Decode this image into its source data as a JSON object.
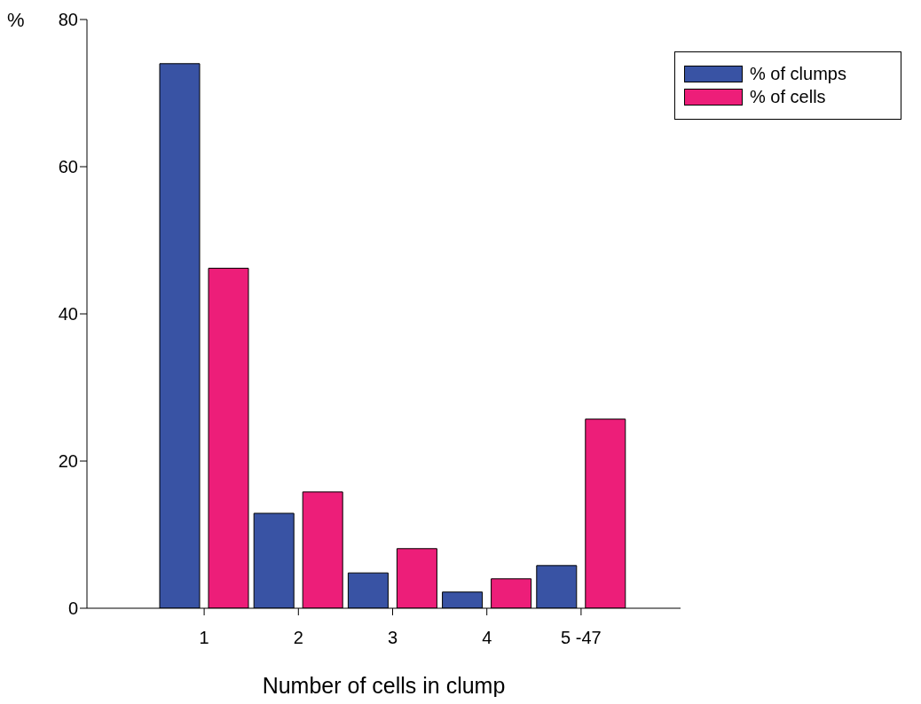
{
  "chart_data": {
    "type": "bar",
    "ylabel": "%",
    "xlabel": "Number of cells in clump",
    "categories": [
      "1",
      "2",
      "3",
      "4",
      "5 -47"
    ],
    "series": [
      {
        "name": "% of clumps",
        "color": "#3953a4",
        "values": [
          74,
          12.9,
          4.8,
          2.2,
          5.8
        ]
      },
      {
        "name": "% of cells",
        "color": "#ed1e79",
        "values": [
          46.2,
          15.8,
          8.1,
          4.0,
          25.7
        ]
      }
    ],
    "ylim": [
      0,
      80
    ],
    "yticks": [
      0,
      20,
      40,
      60,
      80
    ],
    "grid": false,
    "legend": "top right"
  }
}
